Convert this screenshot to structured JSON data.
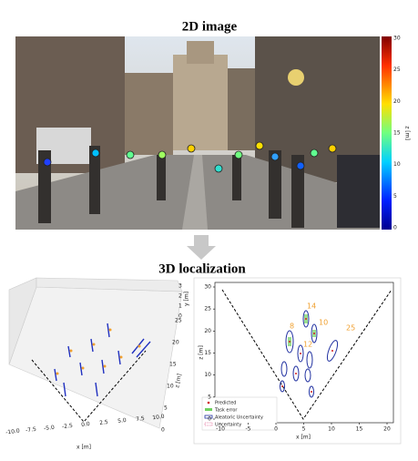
{
  "top_panel": {
    "title": "2D image",
    "colorbar": {
      "label": "z [m]",
      "ticks": [
        "30",
        "25",
        "20",
        "15",
        "10",
        "5",
        "0"
      ]
    }
  },
  "bottom_panel": {
    "title": "3D localization",
    "plot_3d": {
      "x_label": "x [m]",
      "z_label": "z [m]",
      "y_label": "y [m]",
      "x_ticks": [
        "-10.0",
        "-7.5",
        "-5.0",
        "-2.5",
        "0.0",
        "2.5",
        "5.0",
        "7.5",
        "10.0"
      ],
      "z_ticks": [
        "0",
        "5",
        "10",
        "15",
        "20",
        "25"
      ],
      "y_ticks": [
        "3",
        "2",
        "1",
        "0"
      ]
    },
    "plot_bev": {
      "x_label": "x [m]",
      "z_label": "z [m]",
      "x_ticks": [
        "-10",
        "-5",
        "0",
        "5",
        "10",
        "15",
        "20"
      ],
      "z_ticks": [
        "0",
        "5",
        "10",
        "15",
        "20",
        "25",
        "30"
      ],
      "annotations": [
        "14",
        "10",
        "25",
        "8",
        "12"
      ],
      "legend": [
        "Predicted",
        "Task error",
        "Aleatoric Uncertainty",
        "Uncertainty"
      ]
    }
  }
}
